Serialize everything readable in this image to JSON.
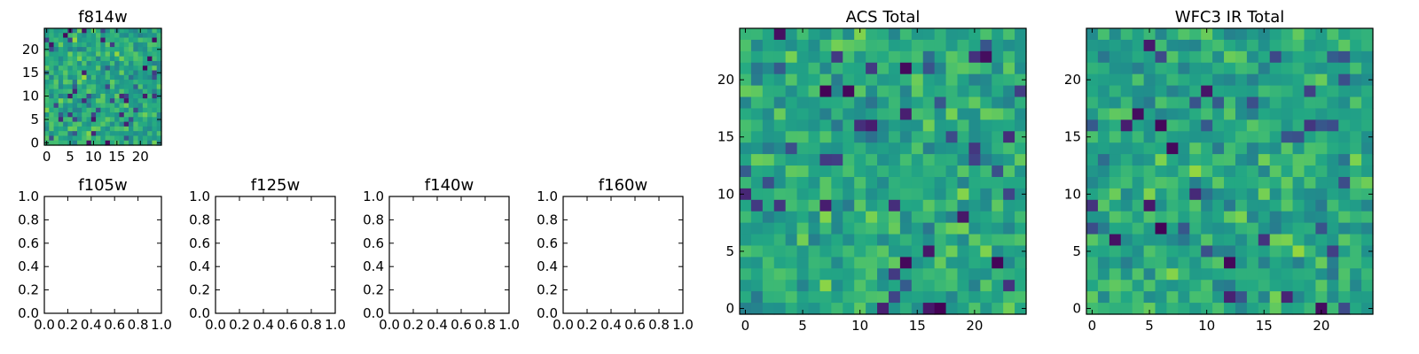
{
  "chart_data": [
    {
      "type": "heatmap",
      "id": "f814w",
      "title": "f814w",
      "xlim": [
        -0.5,
        24.5
      ],
      "ylim": [
        -0.5,
        24.5
      ],
      "xticks": [
        0,
        5,
        10,
        15,
        20
      ],
      "xtick_labels": [
        "0",
        "5",
        "10",
        "15",
        "20"
      ],
      "yticks": [
        0,
        5,
        10,
        15,
        20
      ],
      "ytick_labels": [
        "0",
        "5",
        "10",
        "15",
        "20"
      ],
      "grid_size": [
        25,
        25
      ],
      "colormap": "viridis",
      "seed": 11
    },
    {
      "type": "empty",
      "id": "f105w",
      "title": "f105w",
      "xlim": [
        0,
        1
      ],
      "ylim": [
        0,
        1
      ],
      "xticks": [
        0,
        0.2,
        0.4,
        0.6,
        0.8,
        1.0
      ],
      "xtick_labels": [
        "0.0",
        "0.2",
        "0.4",
        "0.6",
        "0.8",
        "1.0"
      ],
      "yticks": [
        0,
        0.2,
        0.4,
        0.6,
        0.8,
        1.0
      ],
      "ytick_labels": [
        "0.0",
        "0.2",
        "0.4",
        "0.6",
        "0.8",
        "1.0"
      ]
    },
    {
      "type": "empty",
      "id": "f125w",
      "title": "f125w",
      "xlim": [
        0,
        1
      ],
      "ylim": [
        0,
        1
      ],
      "xticks": [
        0,
        0.2,
        0.4,
        0.6,
        0.8,
        1.0
      ],
      "xtick_labels": [
        "0.0",
        "0.2",
        "0.4",
        "0.6",
        "0.8",
        "1.0"
      ],
      "yticks": [
        0,
        0.2,
        0.4,
        0.6,
        0.8,
        1.0
      ],
      "ytick_labels": [
        "0.0",
        "0.2",
        "0.4",
        "0.6",
        "0.8",
        "1.0"
      ]
    },
    {
      "type": "empty",
      "id": "f140w",
      "title": "f140w",
      "xlim": [
        0,
        1
      ],
      "ylim": [
        0,
        1
      ],
      "xticks": [
        0,
        0.2,
        0.4,
        0.6,
        0.8,
        1.0
      ],
      "xtick_labels": [
        "0.0",
        "0.2",
        "0.4",
        "0.6",
        "0.8",
        "1.0"
      ],
      "yticks": [
        0,
        0.2,
        0.4,
        0.6,
        0.8,
        1.0
      ],
      "ytick_labels": [
        "0.0",
        "0.2",
        "0.4",
        "0.6",
        "0.8",
        "1.0"
      ]
    },
    {
      "type": "empty",
      "id": "f160w",
      "title": "f160w",
      "xlim": [
        0,
        1
      ],
      "ylim": [
        0,
        1
      ],
      "xticks": [
        0,
        0.2,
        0.4,
        0.6,
        0.8,
        1.0
      ],
      "xtick_labels": [
        "0.0",
        "0.2",
        "0.4",
        "0.6",
        "0.8",
        "1.0"
      ],
      "yticks": [
        0,
        0.2,
        0.4,
        0.6,
        0.8,
        1.0
      ],
      "ytick_labels": [
        "0.0",
        "0.2",
        "0.4",
        "0.6",
        "0.8",
        "1.0"
      ]
    },
    {
      "type": "heatmap",
      "id": "acs-total",
      "title": "ACS Total",
      "xlim": [
        -0.5,
        24.5
      ],
      "ylim": [
        -0.5,
        24.5
      ],
      "xticks": [
        0,
        5,
        10,
        15,
        20
      ],
      "xtick_labels": [
        "0",
        "5",
        "10",
        "15",
        "20"
      ],
      "yticks": [
        0,
        5,
        10,
        15,
        20
      ],
      "ytick_labels": [
        "0",
        "5",
        "10",
        "15",
        "20"
      ],
      "grid_size": [
        25,
        25
      ],
      "colormap": "viridis",
      "seed": 29
    },
    {
      "type": "heatmap",
      "id": "wfc3-ir-total",
      "title": "WFC3 IR Total",
      "xlim": [
        -0.5,
        24.5
      ],
      "ylim": [
        -0.5,
        24.5
      ],
      "xticks": [
        0,
        5,
        10,
        15,
        20
      ],
      "xtick_labels": [
        "0",
        "5",
        "10",
        "15",
        "20"
      ],
      "yticks": [
        0,
        5,
        10,
        15,
        20
      ],
      "ytick_labels": [
        "0",
        "5",
        "10",
        "15",
        "20"
      ],
      "grid_size": [
        25,
        25
      ],
      "colormap": "viridis",
      "seed": 47
    }
  ]
}
